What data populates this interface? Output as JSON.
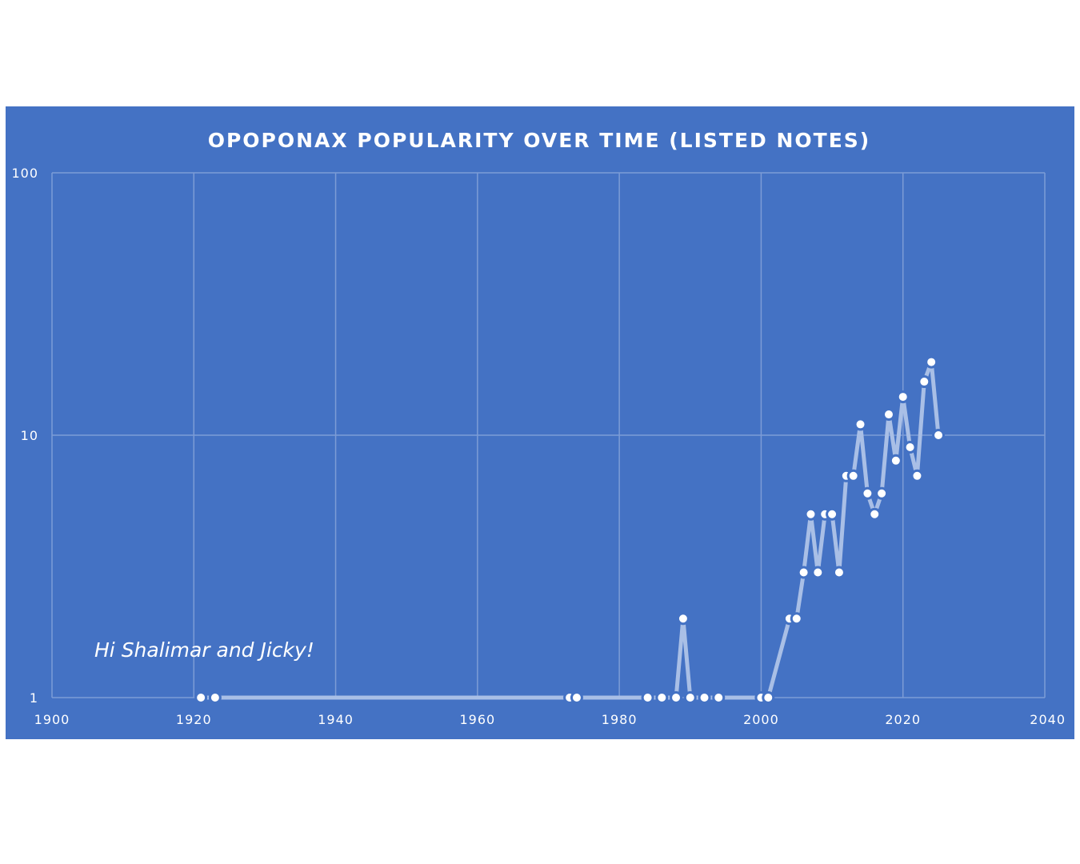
{
  "chart_data": {
    "type": "line",
    "title": "OPOPONAX POPULARITY OVER TIME (LISTED NOTES)",
    "xlabel": "",
    "ylabel": "",
    "xlim": [
      1900,
      2040
    ],
    "ylim": [
      1,
      100
    ],
    "y_scale": "log",
    "grid": true,
    "x_ticks": [
      "1900",
      "1920",
      "1940",
      "1960",
      "1980",
      "2000",
      "2020",
      "2040"
    ],
    "y_ticks": [
      "1",
      "10",
      "100"
    ],
    "annotation": "Hi Shalimar and Jicky!",
    "series": [
      {
        "x": [
          1921,
          1923,
          1973,
          1974,
          1984,
          1986,
          1988,
          1989,
          1990,
          1992,
          1994,
          2000,
          2001,
          2004,
          2005,
          2006,
          2007,
          2008,
          2009,
          2010,
          2011,
          2012,
          2013,
          2014,
          2015,
          2016,
          2017,
          2018,
          2019,
          2020,
          2021,
          2022,
          2023,
          2024,
          2025
        ],
        "y": [
          1,
          1,
          1,
          1,
          1,
          1,
          1,
          2,
          1,
          1,
          1,
          1,
          1,
          2,
          2,
          3,
          5,
          3,
          5,
          5,
          3,
          7,
          7,
          11,
          6,
          5,
          6,
          12,
          8,
          14,
          9,
          7,
          16,
          19,
          10
        ]
      }
    ],
    "colors": {
      "background": "#4472C4",
      "page": "#FFFFFF",
      "line": "#A9BFE6",
      "marker_fill": "#FFFFFF",
      "marker_stroke": "#4472C4",
      "grid": "#7D9CD6",
      "text": "#FFFFFF"
    }
  }
}
